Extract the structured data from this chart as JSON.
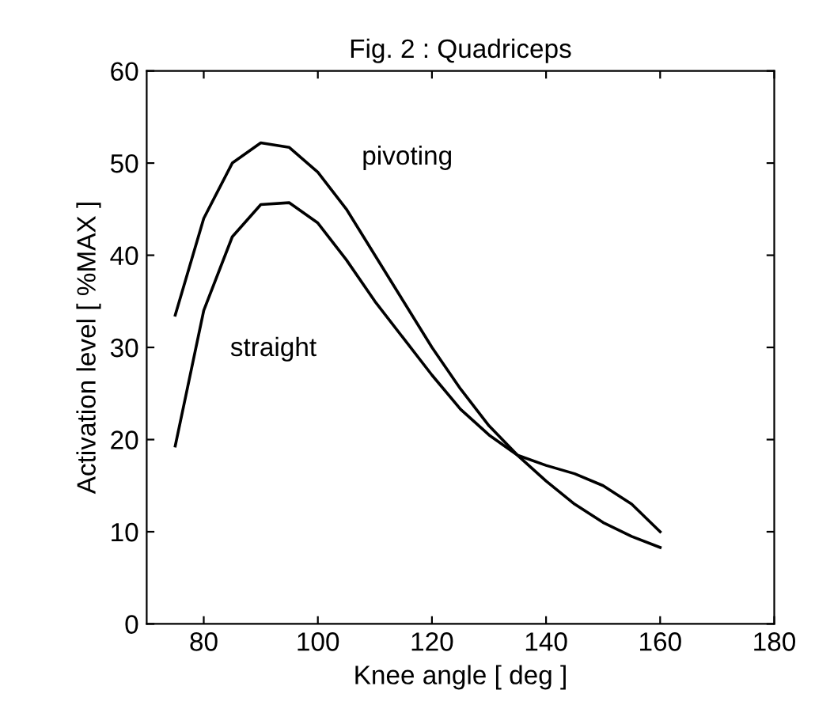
{
  "chart_data": {
    "type": "line",
    "title": "Fig. 2 : Quadriceps",
    "xlabel": "Knee angle [ deg ]",
    "ylabel": "Activation level [ %MAX ]",
    "x": [
      75,
      80,
      85,
      90,
      95,
      100,
      105,
      110,
      115,
      120,
      125,
      130,
      135,
      140,
      145,
      150,
      155,
      160
    ],
    "series": [
      {
        "name": "pivoting",
        "color": "#000000",
        "values": [
          33.5,
          44,
          50,
          52.2,
          51.7,
          49,
          45,
          40,
          35,
          30,
          25.5,
          21.5,
          18.3,
          15.5,
          13,
          11,
          9.5,
          8.3
        ]
      },
      {
        "name": "straight",
        "color": "#000000",
        "values": [
          19.3,
          34,
          42,
          45.5,
          45.7,
          43.5,
          39.5,
          35,
          31,
          27,
          23.3,
          20.5,
          18.3,
          17.2,
          16.3,
          15,
          13,
          10
        ]
      }
    ],
    "xlim": [
      70,
      180
    ],
    "xticks": [
      80,
      100,
      120,
      140,
      160,
      180
    ],
    "ylim": [
      0,
      60
    ],
    "yticks": [
      0,
      10,
      20,
      30,
      40,
      50,
      60
    ],
    "grid": false,
    "legend": false,
    "marker": "none",
    "line_style": "solid"
  }
}
